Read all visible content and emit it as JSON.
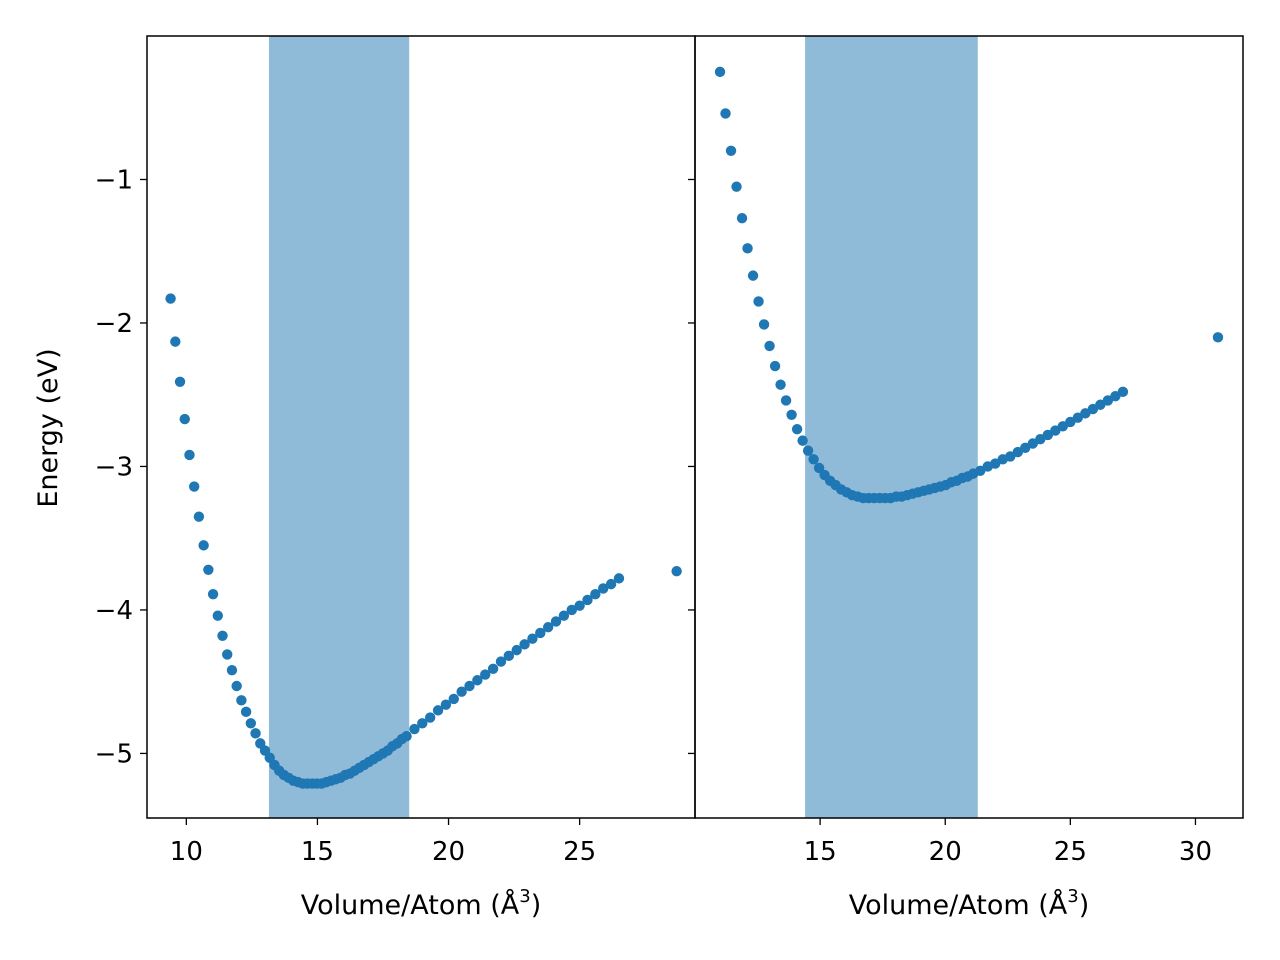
{
  "chart_data": [
    {
      "type": "scatter",
      "title": "",
      "xlabel": "Volume/Atom (Å",
      "xlabel_sup": "3",
      "xlabel_close": ")",
      "ylabel": "Energy (eV)",
      "xlim": [
        8.5,
        29.4
      ],
      "ylim": [
        -5.45,
        0.0
      ],
      "xticks": [
        10,
        15,
        20,
        25
      ],
      "xtick_labels": [
        "10",
        "15",
        "20",
        "25"
      ],
      "yticks": [
        -1,
        -2,
        -3,
        -4,
        -5
      ],
      "ytick_labels": [
        "−1",
        "−2",
        "−3",
        "−4",
        "−5"
      ],
      "shaded_region": {
        "x_start": 13.15,
        "x_end": 18.5,
        "color": "#8fbad8"
      },
      "marker_color": "#1f77b4",
      "grid": false,
      "series": [
        {
          "x": [
            9.4,
            9.58,
            9.76,
            9.94,
            10.12,
            10.3,
            10.48,
            10.66,
            10.84,
            11.02,
            11.2,
            11.38,
            11.56,
            11.74,
            11.92,
            12.1,
            12.28,
            12.46,
            12.64,
            12.82,
            13.0,
            13.18,
            13.36,
            13.54,
            13.72,
            13.9,
            14.08,
            14.26,
            14.44,
            14.62,
            14.8,
            14.98,
            15.16,
            15.34,
            15.52,
            15.7,
            15.88,
            16.06,
            16.24,
            16.42,
            16.6,
            16.78,
            16.96,
            17.14,
            17.32,
            17.5,
            17.68,
            17.86,
            18.04,
            18.22,
            18.4,
            18.7,
            19.0,
            19.3,
            19.6,
            19.9,
            20.2,
            20.5,
            20.8,
            21.1,
            21.4,
            21.7,
            22.0,
            22.3,
            22.6,
            22.9,
            23.2,
            23.5,
            23.8,
            24.1,
            24.4,
            24.7,
            25.0,
            25.3,
            25.6,
            25.9,
            26.2,
            26.5,
            28.7
          ],
          "y": [
            -1.83,
            -2.13,
            -2.41,
            -2.67,
            -2.92,
            -3.14,
            -3.35,
            -3.55,
            -3.72,
            -3.89,
            -4.04,
            -4.18,
            -4.31,
            -4.42,
            -4.53,
            -4.63,
            -4.71,
            -4.79,
            -4.86,
            -4.93,
            -4.98,
            -5.03,
            -5.08,
            -5.12,
            -5.15,
            -5.17,
            -5.19,
            -5.2,
            -5.21,
            -5.21,
            -5.21,
            -5.21,
            -5.21,
            -5.2,
            -5.19,
            -5.18,
            -5.17,
            -5.15,
            -5.14,
            -5.12,
            -5.1,
            -5.08,
            -5.06,
            -5.04,
            -5.02,
            -5.0,
            -4.98,
            -4.95,
            -4.93,
            -4.9,
            -4.88,
            -4.83,
            -4.79,
            -4.75,
            -4.7,
            -4.66,
            -4.62,
            -4.57,
            -4.53,
            -4.49,
            -4.45,
            -4.41,
            -4.36,
            -4.32,
            -4.28,
            -4.24,
            -4.2,
            -4.16,
            -4.12,
            -4.08,
            -4.04,
            -4.0,
            -3.97,
            -3.93,
            -3.89,
            -3.85,
            -3.82,
            -3.78,
            -3.73
          ]
        }
      ]
    },
    {
      "type": "scatter",
      "title": "",
      "xlabel": "Volume/Atom (Å",
      "xlabel_sup": "3",
      "xlabel_close": ")",
      "ylabel": "",
      "xlim": [
        10.0,
        31.9
      ],
      "ylim": [
        -5.45,
        0.0
      ],
      "xticks": [
        15,
        20,
        25,
        30
      ],
      "xtick_labels": [
        "15",
        "20",
        "25",
        "30"
      ],
      "yticks": [
        -1,
        -2,
        -3,
        -4,
        -5
      ],
      "ytick_labels": [],
      "shaded_region": {
        "x_start": 14.4,
        "x_end": 21.3,
        "color": "#8fbad8"
      },
      "marker_color": "#1f77b4",
      "grid": false,
      "series": [
        {
          "x": [
            11.0,
            11.22,
            11.44,
            11.66,
            11.88,
            12.1,
            12.32,
            12.54,
            12.76,
            12.98,
            13.2,
            13.42,
            13.64,
            13.86,
            14.08,
            14.3,
            14.52,
            14.74,
            14.96,
            15.18,
            15.4,
            15.62,
            15.84,
            16.06,
            16.28,
            16.5,
            16.72,
            16.94,
            17.16,
            17.38,
            17.6,
            17.82,
            18.04,
            18.26,
            18.48,
            18.7,
            18.92,
            19.14,
            19.36,
            19.58,
            19.8,
            20.02,
            20.24,
            20.46,
            20.68,
            20.9,
            21.12,
            21.4,
            21.7,
            22.0,
            22.3,
            22.6,
            22.9,
            23.2,
            23.5,
            23.8,
            24.1,
            24.4,
            24.7,
            25.0,
            25.3,
            25.6,
            25.9,
            26.2,
            26.5,
            26.8,
            27.1,
            30.9
          ],
          "y": [
            -0.25,
            -0.54,
            -0.8,
            -1.05,
            -1.27,
            -1.48,
            -1.67,
            -1.85,
            -2.01,
            -2.16,
            -2.3,
            -2.43,
            -2.54,
            -2.64,
            -2.74,
            -2.82,
            -2.89,
            -2.95,
            -3.01,
            -3.06,
            -3.1,
            -3.13,
            -3.16,
            -3.18,
            -3.2,
            -3.21,
            -3.22,
            -3.22,
            -3.22,
            -3.22,
            -3.22,
            -3.22,
            -3.21,
            -3.21,
            -3.2,
            -3.19,
            -3.18,
            -3.17,
            -3.16,
            -3.15,
            -3.14,
            -3.13,
            -3.11,
            -3.1,
            -3.08,
            -3.07,
            -3.05,
            -3.03,
            -3.0,
            -2.98,
            -2.95,
            -2.93,
            -2.9,
            -2.87,
            -2.84,
            -2.81,
            -2.78,
            -2.75,
            -2.72,
            -2.69,
            -2.66,
            -2.63,
            -2.6,
            -2.57,
            -2.54,
            -2.51,
            -2.48,
            -2.1
          ]
        }
      ]
    }
  ]
}
